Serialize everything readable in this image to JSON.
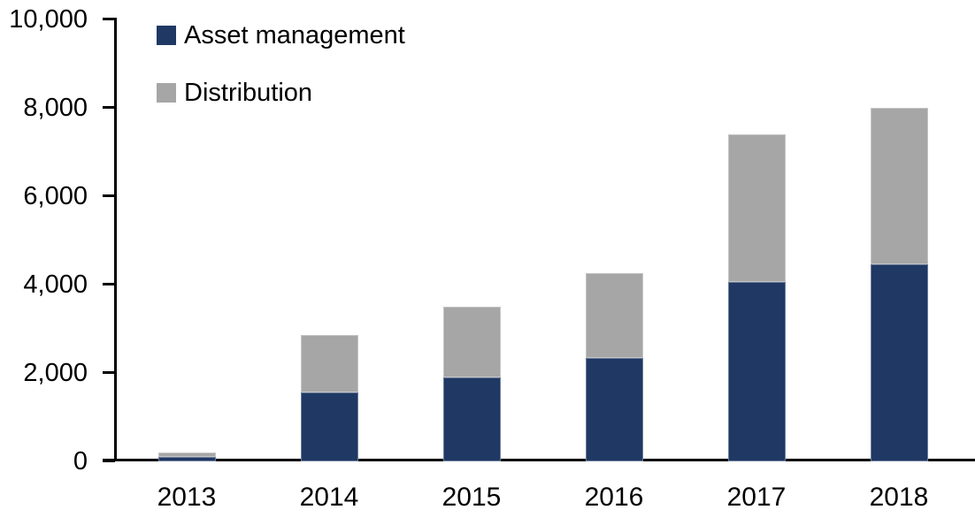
{
  "chart_data": {
    "type": "bar",
    "stacked": true,
    "title": "",
    "xlabel": "",
    "ylabel": "",
    "categories": [
      "2013",
      "2014",
      "2015",
      "2016",
      "2017",
      "2018"
    ],
    "series": [
      {
        "name": "Asset management",
        "color": "#1F3864",
        "values": [
          100,
          1550,
          1900,
          2325,
          4050,
          4450
        ]
      },
      {
        "name": "Distribution",
        "color": "#A6A6A6",
        "values": [
          100,
          1300,
          1600,
          1925,
          3350,
          3550
        ]
      }
    ],
    "totals": [
      200,
      2850,
      3500,
      4250,
      7400,
      8000
    ],
    "ylim": [
      0,
      10000
    ],
    "ytick_interval": 2000,
    "ytick_labels": [
      "0",
      "2,000",
      "4,000",
      "6,000",
      "8,000",
      "10,000"
    ],
    "legend_position": "top-left",
    "grid": false,
    "axis_color": "#000000",
    "text_color": "#000000",
    "background_color": "#FFFFFF"
  }
}
